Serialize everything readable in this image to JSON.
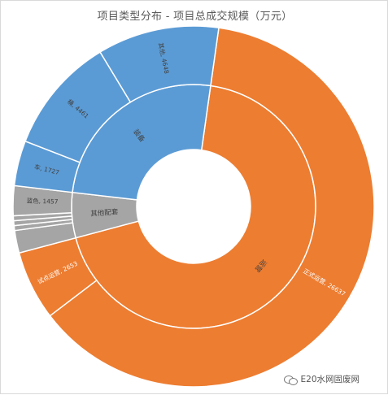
{
  "chart_data": {
    "type": "sunburst",
    "title": "项目类型分布 - 项目总成交规模（万元）",
    "colors": {
      "运营": "#ed7d31",
      "装备": "#5b9bd5",
      "其他配套": "#a5a5a5",
      "border": "#ffffff",
      "label_dark": "#404040",
      "label_light": "#ffffff"
    },
    "inner_ring": [
      {
        "name": "运营",
        "value": 29290
      },
      {
        "name": "其他配套",
        "value": 2557
      },
      {
        "name": "装备",
        "value": 10836
      }
    ],
    "outer_ring": [
      {
        "name": "正式运营",
        "parent": "运营",
        "value": 26637,
        "label": "正式运营, 26637"
      },
      {
        "name": "试点运营",
        "parent": "运营",
        "value": 2653,
        "label": "试点运营, 2653"
      },
      {
        "name": "",
        "parent": "其他配套",
        "value": 1100,
        "label": ""
      },
      {
        "name": "",
        "parent": "其他配套",
        "value": 0,
        "label": ""
      },
      {
        "name": "",
        "parent": "其他配套",
        "value": 0,
        "label": ""
      },
      {
        "name": "",
        "parent": "其他配套",
        "value": 0,
        "label": ""
      },
      {
        "name": "蓝色",
        "parent": "其他配套",
        "value": 1457,
        "label": "蓝色, 1457"
      },
      {
        "name": "车",
        "parent": "装备",
        "value": 1727,
        "label": "车, 1727"
      },
      {
        "name": "桶",
        "parent": "装备",
        "value": 4461,
        "label": "桶, 4461"
      },
      {
        "name": "其他",
        "parent": "装备",
        "value": 4648,
        "label": "其他, 4648"
      }
    ]
  },
  "watermark": {
    "text": "E20水网固废网",
    "icon": "wechat-icon"
  }
}
